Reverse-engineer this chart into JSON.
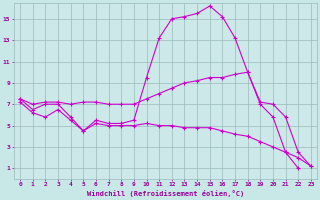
{
  "background_color": "#c8e8e8",
  "plot_bg_color": "#cce8e8",
  "line_color": "#cc00cc",
  "grid_color": "#99bbbb",
  "xlabel": "Windchill (Refroidissement éolien,°C)",
  "xlim": [
    -0.5,
    23.5
  ],
  "ylim": [
    0,
    16.5
  ],
  "xticks": [
    0,
    1,
    2,
    3,
    4,
    5,
    6,
    7,
    8,
    9,
    10,
    11,
    12,
    13,
    14,
    15,
    16,
    17,
    18,
    19,
    20,
    21,
    22,
    23
  ],
  "yticks": [
    1,
    3,
    5,
    7,
    9,
    11,
    13,
    15
  ],
  "series1_x": [
    0,
    1,
    2,
    3,
    4,
    5,
    6,
    7,
    8,
    9,
    10,
    11,
    12,
    13,
    14,
    15,
    16,
    17,
    18,
    19,
    20,
    21,
    22
  ],
  "series1_y": [
    7.5,
    6.5,
    7.0,
    7.0,
    5.8,
    4.5,
    5.5,
    5.2,
    5.2,
    5.5,
    9.5,
    13.2,
    15.0,
    15.2,
    15.5,
    16.2,
    15.2,
    13.2,
    10.0,
    7.0,
    5.8,
    2.5,
    1.0
  ],
  "series2_x": [
    0,
    1,
    2,
    3,
    4,
    5,
    6,
    7,
    8,
    9,
    10,
    11,
    12,
    13,
    14,
    15,
    16,
    17,
    18,
    19,
    20,
    21,
    22,
    23
  ],
  "series2_y": [
    7.5,
    7.0,
    7.2,
    7.2,
    7.0,
    7.2,
    7.2,
    7.0,
    7.0,
    7.0,
    7.5,
    8.0,
    8.5,
    9.0,
    9.2,
    9.5,
    9.5,
    9.8,
    10.0,
    7.2,
    7.0,
    5.8,
    2.5,
    1.2
  ],
  "series3_x": [
    0,
    1,
    2,
    3,
    4,
    5,
    6,
    7,
    8,
    9,
    10,
    11,
    12,
    13,
    14,
    15,
    16,
    17,
    18,
    19,
    20,
    21,
    22,
    23
  ],
  "series3_y": [
    7.2,
    6.2,
    5.8,
    6.5,
    5.5,
    4.5,
    5.2,
    5.0,
    5.0,
    5.0,
    5.2,
    5.0,
    5.0,
    4.8,
    4.8,
    4.8,
    4.5,
    4.2,
    4.0,
    3.5,
    3.0,
    2.5,
    2.0,
    1.2
  ]
}
